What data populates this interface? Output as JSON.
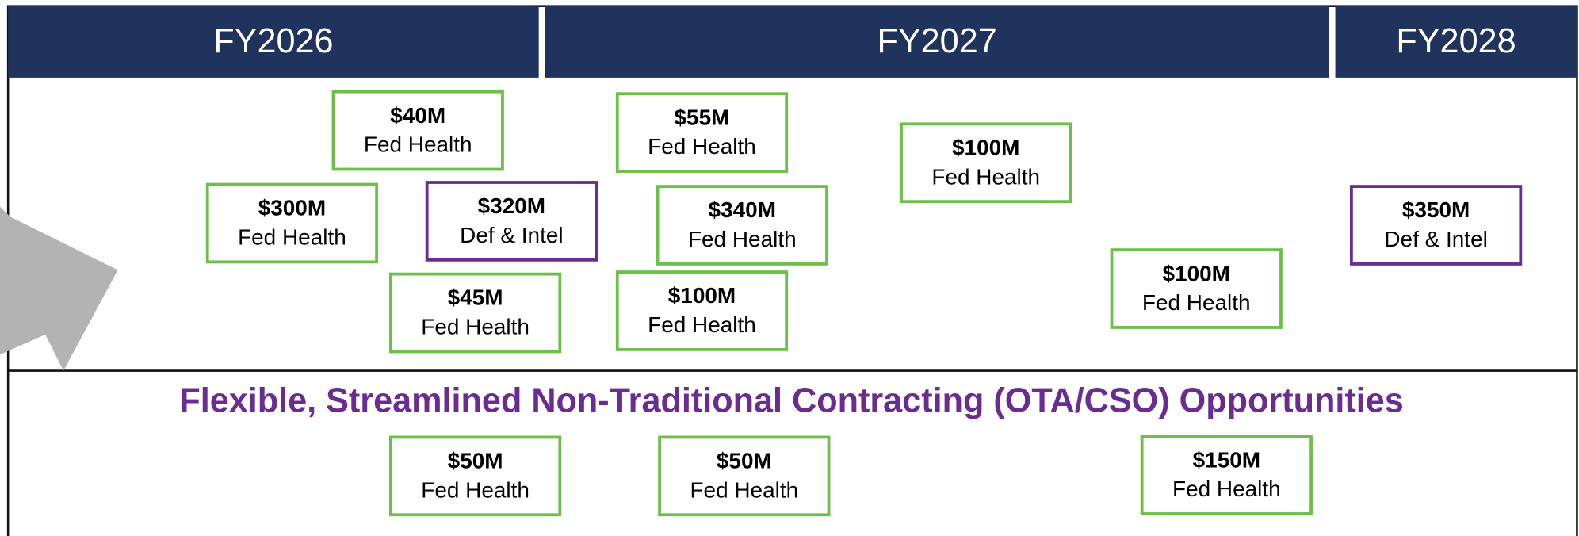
{
  "header": {
    "columns": [
      "FY2026",
      "FY2027",
      "FY2028"
    ]
  },
  "upper": {
    "boxes": [
      {
        "amount": "$40M",
        "segment": "Fed Health",
        "color": "#6cc04a"
      },
      {
        "amount": "$300M",
        "segment": "Fed Health",
        "color": "#6cc04a"
      },
      {
        "amount": "$320M",
        "segment": "Def & Intel",
        "color": "#6a2c91"
      },
      {
        "amount": "$45M",
        "segment": "Fed Health",
        "color": "#6cc04a"
      },
      {
        "amount": "$55M",
        "segment": "Fed Health",
        "color": "#6cc04a"
      },
      {
        "amount": "$340M",
        "segment": "Fed Health",
        "color": "#6cc04a"
      },
      {
        "amount": "$100M",
        "segment": "Fed Health",
        "color": "#6cc04a"
      },
      {
        "amount": "$100M",
        "segment": "Fed Health",
        "color": "#6cc04a"
      },
      {
        "amount": "$100M",
        "segment": "Fed Health",
        "color": "#6cc04a"
      },
      {
        "amount": "$350M",
        "segment": "Def & Intel",
        "color": "#6a2c91"
      }
    ]
  },
  "lower": {
    "title": "Flexible, Streamlined Non-Traditional Contracting (OTA/CSO) Opportunities",
    "boxes": [
      {
        "amount": "$50M",
        "segment": "Fed Health",
        "color": "#6cc04a"
      },
      {
        "amount": "$50M",
        "segment": "Fed Health",
        "color": "#6cc04a"
      },
      {
        "amount": "$150M",
        "segment": "Fed Health",
        "color": "#6cc04a"
      }
    ]
  }
}
